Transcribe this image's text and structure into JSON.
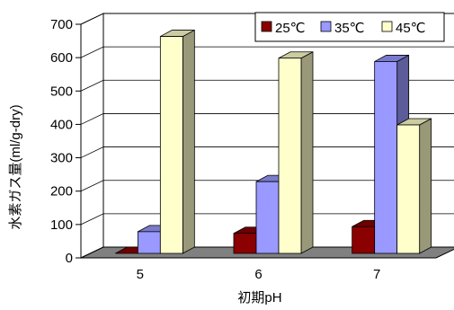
{
  "chart_data": {
    "type": "bar",
    "categories": [
      "5",
      "6",
      "7"
    ],
    "series": [
      {
        "name": "25℃",
        "values": [
          0,
          60,
          80
        ],
        "color": "#8B0000"
      },
      {
        "name": "35℃",
        "values": [
          65,
          215,
          575
        ],
        "color": "#9999FF"
      },
      {
        "name": "45℃",
        "values": [
          650,
          585,
          385
        ],
        "color": "#FFFFCC"
      }
    ],
    "xlabel": "初期pH",
    "ylabel": "水素ガス量(ml/g-dry)",
    "ylim": [
      0,
      700
    ],
    "yticks": [
      "0",
      "100",
      "200",
      "300",
      "400",
      "500",
      "600",
      "700"
    ],
    "grid": true,
    "legend_position": "top-right",
    "style": "3d",
    "floor_color": "#808080"
  }
}
